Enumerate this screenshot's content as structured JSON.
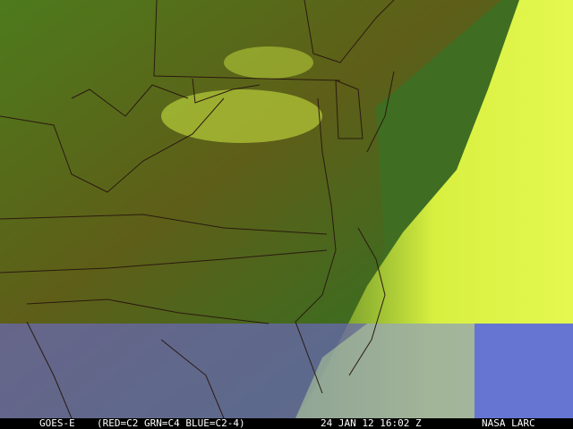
{
  "caption": {
    "satellite": "GOES-E",
    "channels": "(RED=C2 GRN=C4 BLUE=C2-4)",
    "datetime": "24 JAN 12 16:02 Z",
    "credit": "NASA LARC"
  },
  "colors": {
    "land_dark": "#5a5a14",
    "land_green": "#3c6e1e",
    "cloud_yellow": "#d8f040",
    "lower_band": "#6a6aa8",
    "ocean_blue": "#4a5ae0",
    "borders": "#2a1a10"
  }
}
